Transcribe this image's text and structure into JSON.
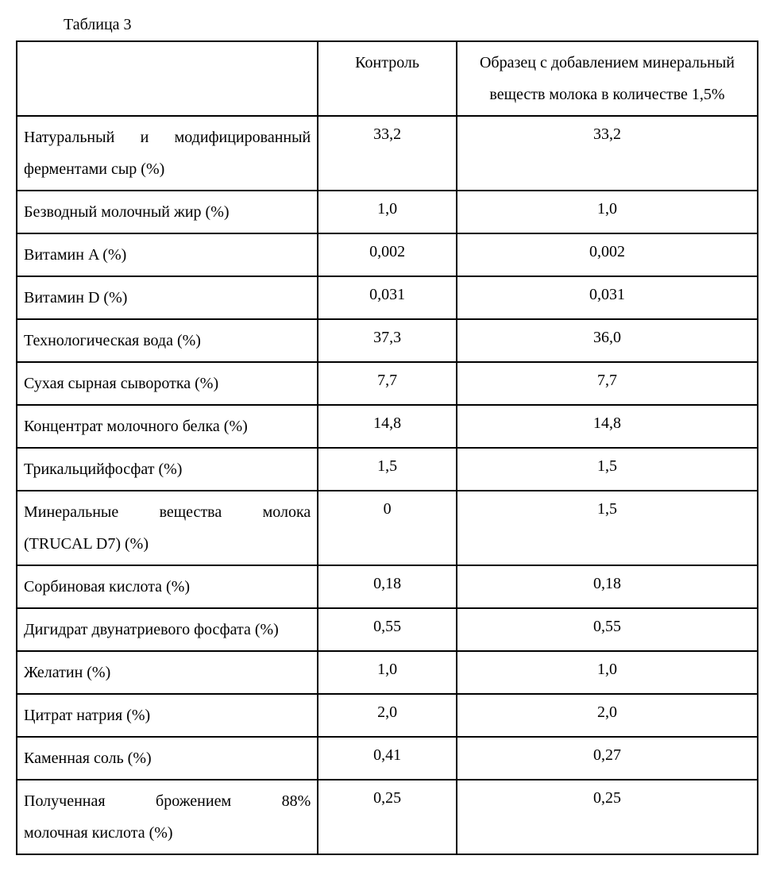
{
  "caption": "Таблица 3",
  "table": {
    "header": {
      "c0": "",
      "c1": "Контроль",
      "c2": "Образец с добавлением минеральный веществ молока в количестве 1,5%"
    },
    "rows": [
      {
        "label_html": "<span class='justify' style='display:block'>Натуральный и модифицированный</span>ферментами сыр (%)",
        "c1": "33,2",
        "c2": "33,2"
      },
      {
        "label_html": "Безводный молочный жир (%)",
        "c1": "1,0",
        "c2": "1,0"
      },
      {
        "label_html": "Витамин A (%)",
        "c1": "0,002",
        "c2": "0,002"
      },
      {
        "label_html": "Витамин D (%)",
        "c1": "0,031",
        "c2": "0,031"
      },
      {
        "label_html": "Технологическая вода (%)",
        "c1": "37,3",
        "c2": "36,0"
      },
      {
        "label_html": "Сухая сырная сыворотка (%)",
        "c1": "7,7",
        "c2": "7,7"
      },
      {
        "label_html": "Концентрат молочного белка (%)",
        "c1": "14,8",
        "c2": "14,8"
      },
      {
        "label_html": "Трикальцийфосфат (%)",
        "c1": "1,5",
        "c2": "1,5"
      },
      {
        "label_html": "<span class='justify' style='display:block'>Минеральные вещества молока</span>(TRUCAL D7) (%)",
        "c1": "0",
        "c2": "1,5"
      },
      {
        "label_html": "Сорбиновая кислота (%)",
        "c1": "0,18",
        "c2": "0,18"
      },
      {
        "label_html": "Дигидрат двунатриевого фосфата (%)",
        "c1": "0,55",
        "c2": "0,55"
      },
      {
        "label_html": "Желатин (%)",
        "c1": "1,0",
        "c2": "1,0"
      },
      {
        "label_html": "Цитрат натрия (%)",
        "c1": "2,0",
        "c2": "2,0"
      },
      {
        "label_html": "Каменная соль (%)",
        "c1": "0,41",
        "c2": "0,27"
      },
      {
        "label_html": "<span class='justify' style='display:block'>Полученная брожением 88%</span>молочная кислота (%)",
        "c1": "0,25",
        "c2": "0,25"
      }
    ]
  }
}
